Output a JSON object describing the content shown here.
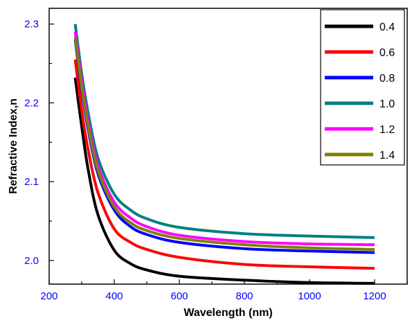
{
  "chart_data": {
    "type": "line",
    "title": "",
    "xlabel": "Wavelength (nm)",
    "ylabel": "Refractive Index,n",
    "xlim": [
      200,
      1300
    ],
    "ylim": [
      1.97,
      2.32
    ],
    "x_ticks": [
      200,
      400,
      600,
      800,
      1000,
      1200
    ],
    "x_tick_labels": [
      "200",
      "400",
      "600",
      "800",
      "1000",
      "1200"
    ],
    "y_ticks": [
      2.0,
      2.1,
      2.2,
      2.3
    ],
    "y_tick_labels": [
      "2.0",
      "2.1",
      "2.2",
      "2.3"
    ],
    "x_range": [
      280,
      1200
    ],
    "grid": false,
    "legend_position": "top-right",
    "series": [
      {
        "name": "0.4",
        "color": "#000000",
        "x": [
          280,
          300,
          320,
          350,
          400,
          450,
          500,
          600,
          800,
          1000,
          1200
        ],
        "y": [
          2.232,
          2.17,
          2.115,
          2.058,
          2.013,
          1.996,
          1.988,
          1.98,
          1.975,
          1.972,
          1.971
        ]
      },
      {
        "name": "0.6",
        "color": "#ff0000",
        "x": [
          280,
          300,
          320,
          350,
          400,
          450,
          500,
          600,
          800,
          1000,
          1200
        ],
        "y": [
          2.255,
          2.19,
          2.14,
          2.086,
          2.04,
          2.023,
          2.014,
          2.004,
          1.995,
          1.992,
          1.99
        ]
      },
      {
        "name": "0.8",
        "color": "#0000ff",
        "x": [
          280,
          300,
          320,
          350,
          400,
          450,
          500,
          600,
          800,
          1000,
          1200
        ],
        "y": [
          2.28,
          2.216,
          2.166,
          2.11,
          2.064,
          2.043,
          2.033,
          2.023,
          2.015,
          2.012,
          2.01
        ]
      },
      {
        "name": "1.0",
        "color": "#008080",
        "x": [
          280,
          300,
          320,
          350,
          400,
          450,
          500,
          600,
          800,
          1000,
          1200
        ],
        "y": [
          2.3,
          2.237,
          2.187,
          2.13,
          2.084,
          2.064,
          2.053,
          2.042,
          2.034,
          2.031,
          2.029
        ]
      },
      {
        "name": "1.2",
        "color": "#ff00ff",
        "x": [
          280,
          300,
          320,
          350,
          400,
          450,
          500,
          600,
          800,
          1000,
          1200
        ],
        "y": [
          2.29,
          2.228,
          2.177,
          2.12,
          2.074,
          2.054,
          2.043,
          2.032,
          2.024,
          2.021,
          2.02
        ]
      },
      {
        "name": "1.4",
        "color": "#808000",
        "x": [
          280,
          300,
          320,
          350,
          400,
          450,
          500,
          600,
          800,
          1000,
          1200
        ],
        "y": [
          2.283,
          2.22,
          2.17,
          2.114,
          2.068,
          2.048,
          2.038,
          2.028,
          2.02,
          2.016,
          2.014
        ]
      }
    ]
  }
}
